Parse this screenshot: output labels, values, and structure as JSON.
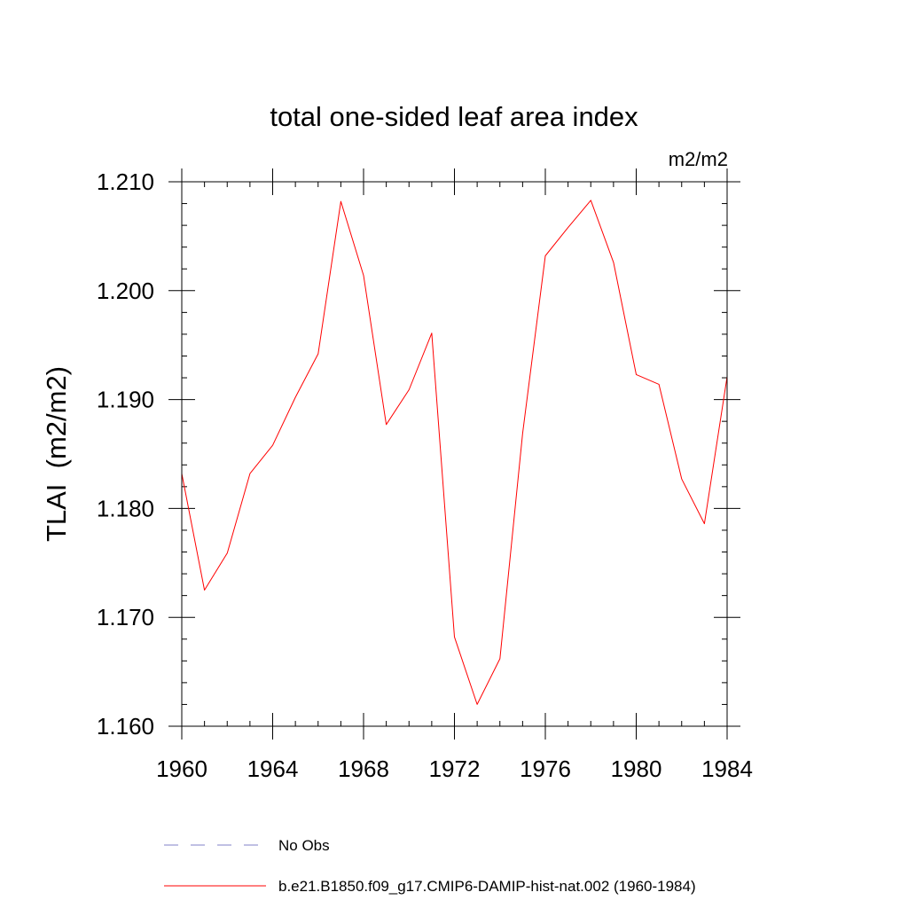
{
  "chart_data": {
    "type": "line",
    "title": "total one-sided leaf area index",
    "units_label": "m2/m2",
    "ylabel": "TLAI  (m2/m2)",
    "xlabel": "",
    "xlim": [
      1960,
      1984
    ],
    "ylim": [
      1.16,
      1.21
    ],
    "xticks": [
      1960,
      1964,
      1968,
      1972,
      1976,
      1980,
      1984
    ],
    "xtick_labels": [
      "1960",
      "1964",
      "1968",
      "1972",
      "1976",
      "1980",
      "1984"
    ],
    "yticks": [
      1.16,
      1.17,
      1.18,
      1.19,
      1.2,
      1.21
    ],
    "ytick_labels": [
      "1.160",
      "1.170",
      "1.180",
      "1.190",
      "1.200",
      "1.210"
    ],
    "grid": false,
    "legend_position": "bottom",
    "series": [
      {
        "name": "b.e21.B1850.f09_g17.CMIP6-DAMIP-hist-nat.002 (1960-1984)",
        "color": "#ff0000",
        "style": "solid",
        "x": [
          1960,
          1961,
          1962,
          1963,
          1964,
          1965,
          1966,
          1967,
          1968,
          1969,
          1970,
          1971,
          1972,
          1973,
          1974,
          1975,
          1976,
          1977,
          1978,
          1979,
          1980,
          1981,
          1982,
          1983,
          1984
        ],
        "y": [
          1.1832,
          1.1725,
          1.1759,
          1.1832,
          1.1858,
          1.1902,
          1.1942,
          1.2082,
          1.2014,
          1.1877,
          1.1909,
          1.1961,
          1.1682,
          1.162,
          1.1662,
          1.1869,
          1.2032,
          1.2058,
          1.2083,
          1.2026,
          1.1923,
          1.1914,
          1.1827,
          1.1786,
          1.1921
        ]
      }
    ],
    "legend": [
      {
        "label": "No Obs",
        "color": "#8080c8",
        "style": "dashed"
      },
      {
        "label": "b.e21.B1850.f09_g17.CMIP6-DAMIP-hist-nat.002 (1960-1984)",
        "color": "#ff0000",
        "style": "solid"
      }
    ]
  }
}
